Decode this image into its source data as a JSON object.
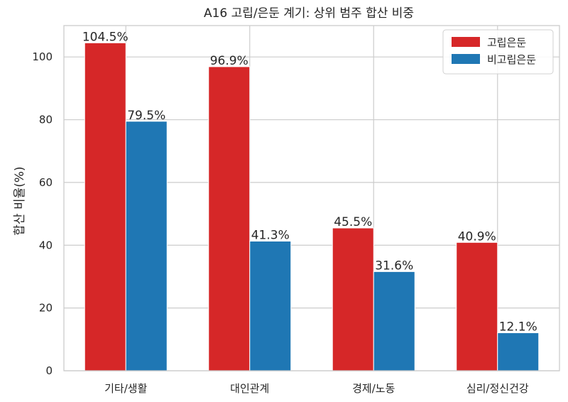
{
  "chart_data": {
    "type": "bar",
    "title": "A16 고립/은둔 계기: 상위 범주 합산 비중",
    "xlabel": "",
    "ylabel": "합산 비율(%)",
    "ylim": [
      0,
      110
    ],
    "yticks": [
      0,
      20,
      40,
      60,
      80,
      100
    ],
    "grid": true,
    "legend_position": "top-right",
    "categories": [
      "기타/생활",
      "대인관계",
      "경제/노동",
      "심리/정신건강"
    ],
    "series": [
      {
        "name": "고립은둔",
        "color": "#d62728",
        "values": [
          104.5,
          96.9,
          45.5,
          40.9
        ],
        "labels": [
          "104.5%",
          "96.9%",
          "45.5%",
          "40.9%"
        ]
      },
      {
        "name": "비고립은둔",
        "color": "#1f77b4",
        "values": [
          79.5,
          41.3,
          31.6,
          12.1
        ],
        "labels": [
          "79.5%",
          "41.3%",
          "31.6%",
          "12.1%"
        ]
      }
    ]
  }
}
